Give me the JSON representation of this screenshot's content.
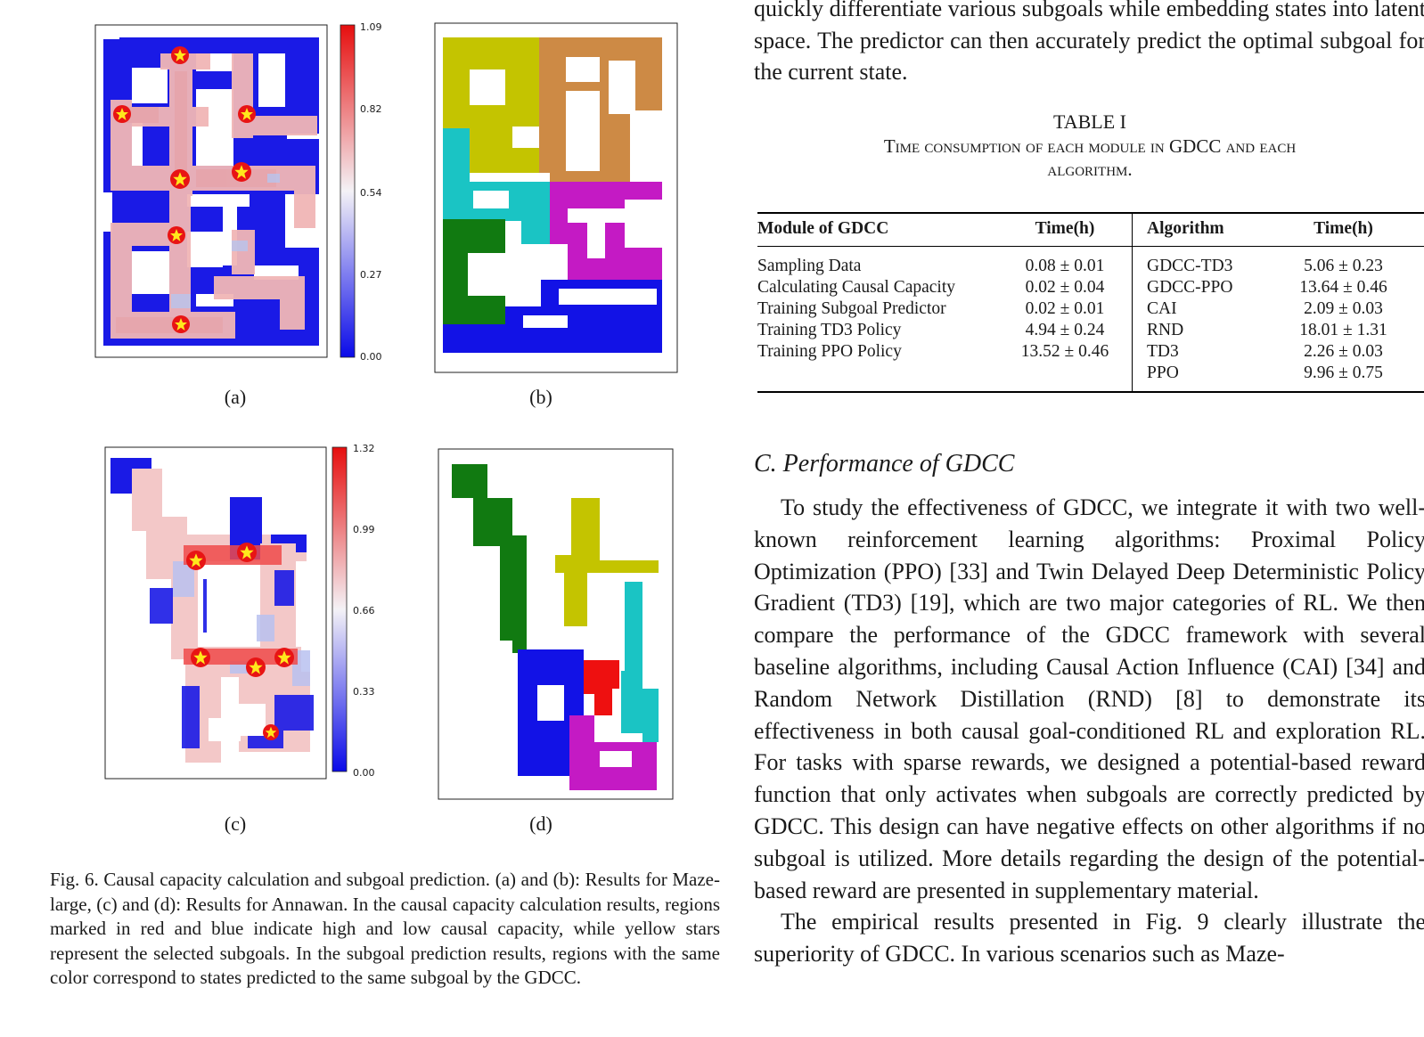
{
  "body_top": "quickly differentiate various subgoals while embedding states into latent space. The predictor can then accurately predict the optimal subgoal for the current state.",
  "table": {
    "label": "TABLE I",
    "title_line1": "Time consumption of each module in GDCC and each",
    "title_line2": "algorithm.",
    "headers": [
      "Module of GDCC",
      "Time(h)",
      "Algorithm",
      "Time(h)"
    ],
    "modules": [
      {
        "name": "Sampling Data",
        "time": "0.08 ± 0.01"
      },
      {
        "name": "Calculating Causal Capacity",
        "time": "0.02 ± 0.04"
      },
      {
        "name": "Training Subgoal Predictor",
        "time": "0.02 ± 0.01"
      },
      {
        "name": "Training TD3 Policy",
        "time": "4.94 ± 0.24"
      },
      {
        "name": "Training PPO Policy",
        "time": "13.52 ± 0.46"
      },
      {
        "name": "",
        "time": ""
      }
    ],
    "algorithms": [
      {
        "name": "GDCC-TD3",
        "time": "5.06 ± 0.23"
      },
      {
        "name": "GDCC-PPO",
        "time": "13.64 ± 0.46"
      },
      {
        "name": "CAI",
        "time": "2.09 ± 0.03"
      },
      {
        "name": "RND",
        "time": "18.01 ± 1.31"
      },
      {
        "name": "TD3",
        "time": "2.26 ± 0.03"
      },
      {
        "name": "PPO",
        "time": "9.96 ± 0.75"
      }
    ]
  },
  "section": {
    "heading": "C. Performance of GDCC",
    "para1": "To study the effectiveness of GDCC, we integrate it with two well-known reinforcement learning algorithms: Proximal Policy Optimization (PPO) [33] and Twin Delayed Deep Deterministic Policy Gradient (TD3) [19], which are two major categories of RL. We then compare the performance of the GDCC framework with several baseline algorithms, including Causal Action Influence (CAI) [34] and Random Network Distillation (RND) [8] to demonstrate its effectiveness in both causal goal-conditioned RL and exploration RL. For tasks with sparse rewards, we designed a potential-based reward function that only activates when subgoals are correctly predicted by GDCC. This design can have negative effects on other algorithms if no subgoal is utilized. More details regarding the design of the potential-based reward are presented in supplementary material.",
    "para2": "The empirical results presented in Fig. 9 clearly illustrate the superiority of GDCC. In various scenarios such as Maze-"
  },
  "figure": {
    "sublabels": [
      "(a)",
      "(b)",
      "(c)",
      "(d)"
    ],
    "colorbar_a_ticks": [
      "1.09",
      "0.82",
      "0.54",
      "0.27",
      "0.00"
    ],
    "colorbar_c_ticks": [
      "1.32",
      "0.99",
      "0.66",
      "0.33",
      "0.00"
    ],
    "caption": "Fig. 6.   Causal capacity calculation and subgoal prediction. (a) and (b): Results for Maze-large, (c) and (d): Results for Annawan. In the causal capacity calculation results, regions marked in red and blue indicate high and low causal capacity, while yellow stars represent the selected subgoals. In the subgoal prediction results, regions with the same color correspond to states predicted to the same subgoal by the GDCC.",
    "colors": {
      "high": "#e8201e",
      "low": "#0a14e6",
      "mid": "#f4d7d7",
      "star": "#ffe81c",
      "olive": "#c4c400",
      "orange": "#cd8a45",
      "cyan": "#1ac4c4",
      "magenta": "#c41ac4",
      "green": "#117a11",
      "blue": "#1212e6",
      "red": "#ee1010"
    }
  }
}
